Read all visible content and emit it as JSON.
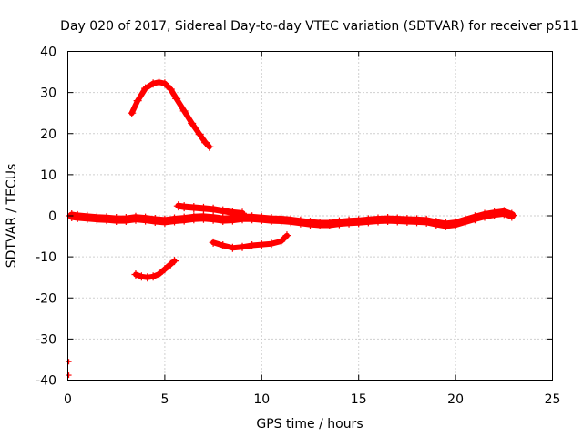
{
  "chart_data": {
    "type": "scatter",
    "title": "Day 020 of 2017, Sidereal Day-to-day VTEC variation (SDTVAR) for receiver p511",
    "xlabel": "GPS time / hours",
    "ylabel": "SDTVAR / TECUs",
    "xlim": [
      0,
      25
    ],
    "ylim": [
      -40,
      40
    ],
    "xticks": [
      0,
      5,
      10,
      15,
      20,
      25
    ],
    "yticks": [
      -40,
      -30,
      -20,
      -10,
      0,
      10,
      20,
      30,
      40
    ],
    "grid": true,
    "legend": "none",
    "series_color": "#ff0000",
    "series": [
      {
        "name": "main band",
        "style": "thick",
        "x": [
          0.2,
          0.5,
          1.0,
          1.5,
          2.0,
          2.5,
          3.0,
          3.5,
          4.0,
          4.5,
          5.0,
          5.5,
          6.0,
          6.5,
          7.0,
          7.5,
          8.0,
          8.5,
          9.0,
          9.5,
          10.0,
          10.5,
          11.0,
          11.5,
          12.0,
          12.5,
          13.0,
          13.5,
          14.0,
          14.5,
          15.0,
          15.5,
          16.0,
          16.5,
          17.0,
          17.5,
          18.0,
          18.5,
          19.0,
          19.5,
          20.0,
          20.5,
          21.0,
          21.5,
          22.0,
          22.5,
          22.9
        ],
        "y": [
          0.0,
          -0.2,
          -0.4,
          -0.6,
          -0.7,
          -0.9,
          -0.9,
          -0.6,
          -0.8,
          -1.1,
          -1.3,
          -1.0,
          -0.8,
          -0.5,
          -0.4,
          -0.6,
          -0.9,
          -0.8,
          -0.5,
          -0.5,
          -0.7,
          -0.9,
          -1.0,
          -1.2,
          -1.5,
          -1.8,
          -2.0,
          -2.0,
          -1.7,
          -1.5,
          -1.4,
          -1.2,
          -1.0,
          -0.9,
          -1.0,
          -1.1,
          -1.2,
          -1.3,
          -1.8,
          -2.2,
          -1.9,
          -1.2,
          -0.5,
          0.1,
          0.5,
          0.8,
          0.1
        ]
      },
      {
        "name": "upper arc",
        "style": "thin",
        "x": [
          3.3,
          3.6,
          4.0,
          4.4,
          4.7,
          5.0,
          5.3,
          5.6,
          6.0,
          6.4,
          6.8,
          7.1,
          7.3
        ],
        "y": [
          25.0,
          28.0,
          31.0,
          32.2,
          32.5,
          32.2,
          30.8,
          28.5,
          25.5,
          22.5,
          19.8,
          17.8,
          16.8
        ]
      },
      {
        "name": "offset segment",
        "style": "medium",
        "x": [
          5.7,
          6.0,
          6.5,
          7.0,
          7.5,
          8.0,
          8.5,
          9.0
        ],
        "y": [
          2.4,
          2.2,
          2.0,
          1.8,
          1.6,
          1.2,
          0.8,
          0.6
        ]
      },
      {
        "name": "lower segment",
        "style": "thin",
        "x": [
          7.5,
          8.0,
          8.5,
          9.0,
          9.5,
          10.0,
          10.5,
          11.0,
          11.3
        ],
        "y": [
          -6.5,
          -7.2,
          -7.8,
          -7.6,
          -7.2,
          -7.0,
          -6.8,
          -6.2,
          -4.8
        ]
      },
      {
        "name": "lowest arc",
        "style": "thin",
        "x": [
          3.5,
          3.8,
          4.1,
          4.4,
          4.7,
          5.0,
          5.3,
          5.5
        ],
        "y": [
          -14.3,
          -14.8,
          -15.0,
          -14.8,
          -14.2,
          -13.0,
          -11.8,
          -11.0
        ]
      },
      {
        "name": "outliers",
        "style": "points",
        "x": [
          0.05,
          0.05
        ],
        "y": [
          -35.5,
          -38.8
        ]
      }
    ]
  }
}
